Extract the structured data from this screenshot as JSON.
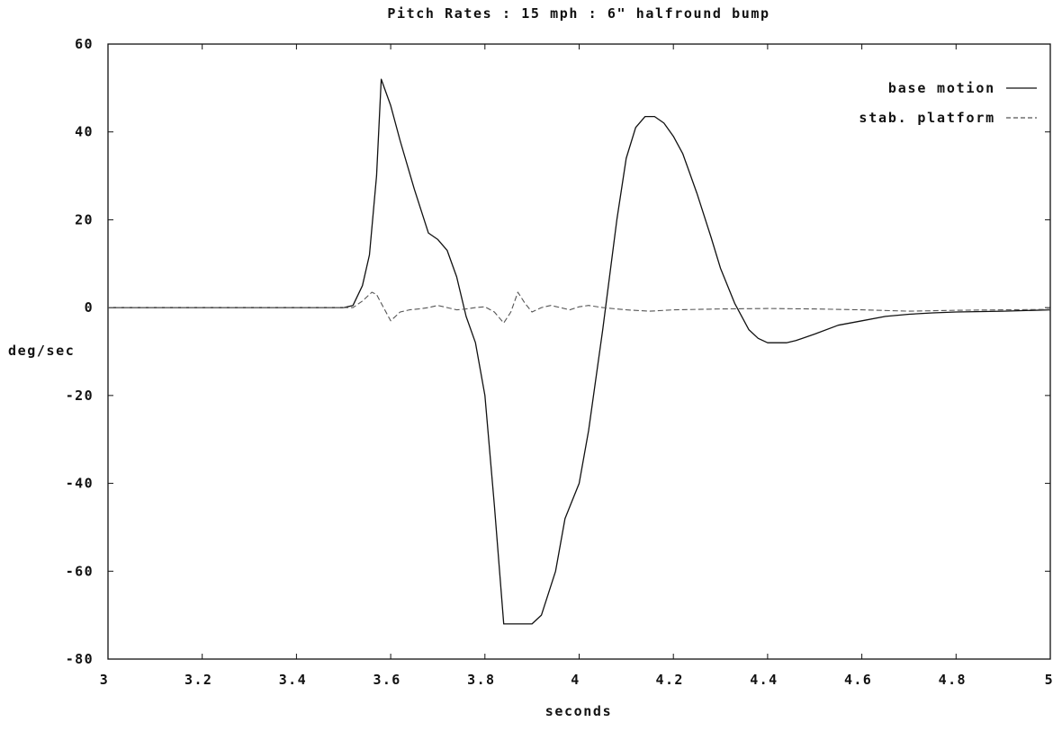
{
  "chart_data": {
    "type": "line",
    "title": "Pitch Rates : 15 mph : 6\" halfround bump",
    "xlabel": "seconds",
    "ylabel": "deg/sec",
    "xlim": [
      3,
      5
    ],
    "ylim": [
      -80,
      60
    ],
    "xticks": [
      3,
      3.2,
      3.4,
      3.6,
      3.8,
      4,
      4.2,
      4.4,
      4.6,
      4.8,
      5
    ],
    "xtick_labels": [
      "3",
      "3.2",
      "3.4",
      "3.6",
      "3.8",
      "4",
      "4.2",
      "4.4",
      "4.6",
      "4.8",
      "5"
    ],
    "yticks": [
      60,
      40,
      20,
      0,
      -20,
      -40,
      -60,
      -80
    ],
    "ytick_labels": [
      "60",
      "40",
      "20",
      "0",
      "-20",
      "-40",
      "-60",
      "-80"
    ],
    "grid": false,
    "legend_position": "top-right",
    "series": [
      {
        "name": "base motion",
        "color": "#111111",
        "dash": "solid",
        "x": [
          3.0,
          3.5,
          3.52,
          3.54,
          3.555,
          3.57,
          3.58,
          3.6,
          3.62,
          3.65,
          3.68,
          3.7,
          3.72,
          3.74,
          3.76,
          3.78,
          3.8,
          3.82,
          3.84,
          3.85,
          3.88,
          3.9,
          3.92,
          3.95,
          3.97,
          4.0,
          4.02,
          4.05,
          4.08,
          4.1,
          4.12,
          4.14,
          4.16,
          4.18,
          4.2,
          4.22,
          4.25,
          4.28,
          4.3,
          4.33,
          4.36,
          4.38,
          4.4,
          4.42,
          4.44,
          4.46,
          4.5,
          4.55,
          4.6,
          4.65,
          4.7,
          4.75,
          4.8,
          4.9,
          5.0
        ],
        "y": [
          0,
          0,
          0.5,
          5,
          12,
          30,
          52,
          46,
          38,
          27,
          17,
          15.5,
          13,
          7,
          -2,
          -8,
          -20,
          -45,
          -72,
          -72,
          -72,
          -72,
          -70,
          -60,
          -48,
          -40,
          -28,
          -5,
          20,
          34,
          41,
          43.5,
          43.5,
          42,
          39,
          35,
          26,
          16,
          9,
          1,
          -5,
          -7,
          -8,
          -8,
          -8,
          -7.5,
          -6,
          -4,
          -3,
          -2,
          -1.5,
          -1.2,
          -1,
          -0.8,
          -0.5
        ]
      },
      {
        "name": "stab. platform",
        "color": "#555555",
        "dash": "dashed",
        "x": [
          3.0,
          3.5,
          3.52,
          3.54,
          3.56,
          3.57,
          3.58,
          3.6,
          3.62,
          3.64,
          3.66,
          3.68,
          3.7,
          3.72,
          3.74,
          3.76,
          3.78,
          3.8,
          3.82,
          3.84,
          3.855,
          3.87,
          3.885,
          3.9,
          3.92,
          3.94,
          3.96,
          3.98,
          4.0,
          4.02,
          4.05,
          4.1,
          4.15,
          4.2,
          4.3,
          4.4,
          4.5,
          4.6,
          4.7,
          4.8,
          5.0
        ],
        "y": [
          0,
          0,
          0,
          1.5,
          3.5,
          3,
          1,
          -3,
          -1,
          -0.5,
          -0.3,
          0,
          0.5,
          0,
          -0.5,
          -0.3,
          0,
          0.2,
          -1,
          -3.5,
          -1,
          3.5,
          1,
          -1,
          0,
          0.5,
          0,
          -0.5,
          0.2,
          0.5,
          0,
          -0.5,
          -0.8,
          -0.5,
          -0.3,
          -0.2,
          -0.3,
          -0.5,
          -0.8,
          -0.6,
          -0.4
        ]
      }
    ]
  }
}
